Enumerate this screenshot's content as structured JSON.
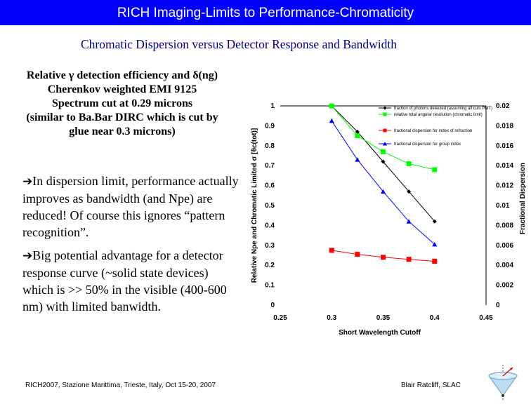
{
  "header": {
    "title": "RICH Imaging-Limits to Performance-Chromaticity"
  },
  "subtitle": "Chromatic Dispersion versus Detector Response and Bandwidth",
  "info": {
    "line1": "Relative γ detection efficiency and δ(ng)",
    "line2": "Cherenkov weighted EMI 9125",
    "line3": "Spectrum cut at 0.29 microns",
    "line4": "(similar to Ba.Bar DIRC which is cut by",
    "line5": "glue near 0.3 microns)"
  },
  "bullets": [
    "In dispersion limit, performance actually improves as bandwidth (and Npe) are reduced! Of course this ignores “pattern recognition”.",
    "Big potential advantage for a detector response curve (~solid state devices) which is >> 50% in the visible (400-600 nm) with limited banwidth."
  ],
  "footer": {
    "left": "RICH2007, Stazione Marittima, Trieste, Italy, Oct 15-20, 2007",
    "right": "Blair Ratcliff, SLAC"
  },
  "colors": {
    "title_bar": "#0000ff",
    "subtitle": "#00008b",
    "series_black": "#000000",
    "series_green": "#00ff00",
    "series_red": "#ff0000",
    "series_blue": "#0000ff"
  },
  "chart_data": {
    "type": "line",
    "xlabel": "Short Wavelength Cutoff",
    "ylabel_left": "Relative Npe and Chromatic Limited σ [θc(tot)]",
    "ylabel_right": "Fractional Dispersion",
    "xlim": [
      0.25,
      0.45
    ],
    "ylim_left": [
      0,
      1
    ],
    "ylim_right": [
      0,
      0.02
    ],
    "x_ticks": [
      "0.25",
      "0.3",
      "0.35",
      "0.4",
      "0.45"
    ],
    "y_ticks_left": [
      "0",
      "0.1",
      "0.2",
      "0.3",
      "0.4",
      "0.5",
      "0.6",
      "0.7",
      "0.8",
      "0.9",
      "1"
    ],
    "y_ticks_right": [
      "0",
      "0.002",
      "0.004",
      "0.006",
      "0.008",
      "0.01",
      "0.012",
      "0.014",
      "0.016",
      "0.018",
      "0.02"
    ],
    "grid": false,
    "legend_position": "top-right",
    "series": [
      {
        "name": "fraction of photons detected (assuming all cuts PMT)",
        "color": "#000000",
        "marker": "diamond",
        "axis": "left",
        "x": [
          0.3,
          0.325,
          0.35,
          0.375,
          0.4
        ],
        "y": [
          1.0,
          0.87,
          0.72,
          0.57,
          0.42
        ]
      },
      {
        "name": "relative total angular resolution (chromatic limit)",
        "color": "#00ff00",
        "marker": "square",
        "axis": "left",
        "x": [
          0.3,
          0.325,
          0.35,
          0.375,
          0.4
        ],
        "y": [
          1.0,
          0.85,
          0.77,
          0.71,
          0.68
        ]
      },
      {
        "name": "fractional dispersion for index of refraction",
        "color": "#ff0000",
        "marker": "square",
        "axis": "right",
        "x": [
          0.3,
          0.325,
          0.35,
          0.375,
          0.4
        ],
        "y": [
          0.0055,
          0.0051,
          0.0048,
          0.0046,
          0.0044
        ]
      },
      {
        "name": "fractional dispersion for group index",
        "color": "#0000ff",
        "marker": "triangle",
        "axis": "right",
        "x": [
          0.3,
          0.325,
          0.35,
          0.375,
          0.4
        ],
        "y": [
          0.0185,
          0.0146,
          0.0114,
          0.0084,
          0.0061
        ]
      }
    ]
  }
}
